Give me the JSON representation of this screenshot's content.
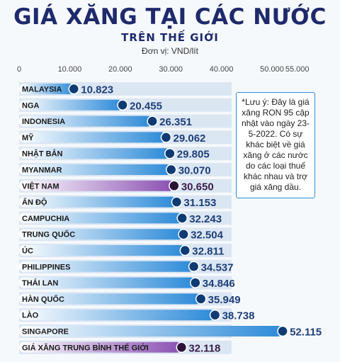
{
  "title": "GIÁ XĂNG TẠI CÁC NƯỚC",
  "subtitle": "TRÊN THẾ GIỚI",
  "unit_label": "Đơn vị: VND/lít",
  "note": "*Lưu ý: Đây là giá xăng RON 95 cập nhật vào ngày 23-5-2022. Có sự khác biệt về giá xăng ở các nước do các loại thuế khác nhau và trợ giá xăng dầu.",
  "colors": {
    "bar_blue": "#2c8ad8",
    "bar_purple": "#8a4fb2",
    "row_background": "#dbe6f3",
    "title_navy": "#1e2a6b"
  },
  "chart_data": {
    "type": "bar",
    "orientation": "horizontal",
    "x_ticks": [
      "0",
      "10.000",
      "20.000",
      "30.000",
      "40.000",
      "50.000",
      "55.000"
    ],
    "x_tick_values": [
      0,
      10000,
      20000,
      30000,
      40000,
      50000,
      55000
    ],
    "xlim": [
      0,
      55000
    ],
    "categories": [
      "MALAYSIA",
      "NGA",
      "INDONESIA",
      "MỸ",
      "NHẬT BẢN",
      "MYANMAR",
      "VIỆT NAM",
      "ẤN ĐỘ",
      "CAMPUCHIA",
      "TRUNG QUỐC",
      "ÚC",
      "PHILIPPINES",
      "THÁI LAN",
      "HÀN QUỐC",
      "LÀO",
      "SINGAPORE",
      "GIÁ XĂNG TRUNG BÌNH THẾ GIỚI"
    ],
    "values": [
      10823,
      20455,
      26351,
      29062,
      29805,
      30070,
      30650,
      31153,
      32243,
      32504,
      32811,
      34537,
      34846,
      35949,
      38738,
      52115,
      32118
    ],
    "value_labels": [
      "10.823",
      "20.455",
      "26.351",
      "29.062",
      "29.805",
      "30.070",
      "30.650",
      "31.153",
      "32.243",
      "32.504",
      "32.811",
      "34.537",
      "34.846",
      "35.949",
      "38.738",
      "52.115",
      "32.118"
    ],
    "highlighted": [
      "VIỆT NAM",
      "GIÁ XĂNG TRUNG BÌNH THẾ GIỚI"
    ]
  }
}
